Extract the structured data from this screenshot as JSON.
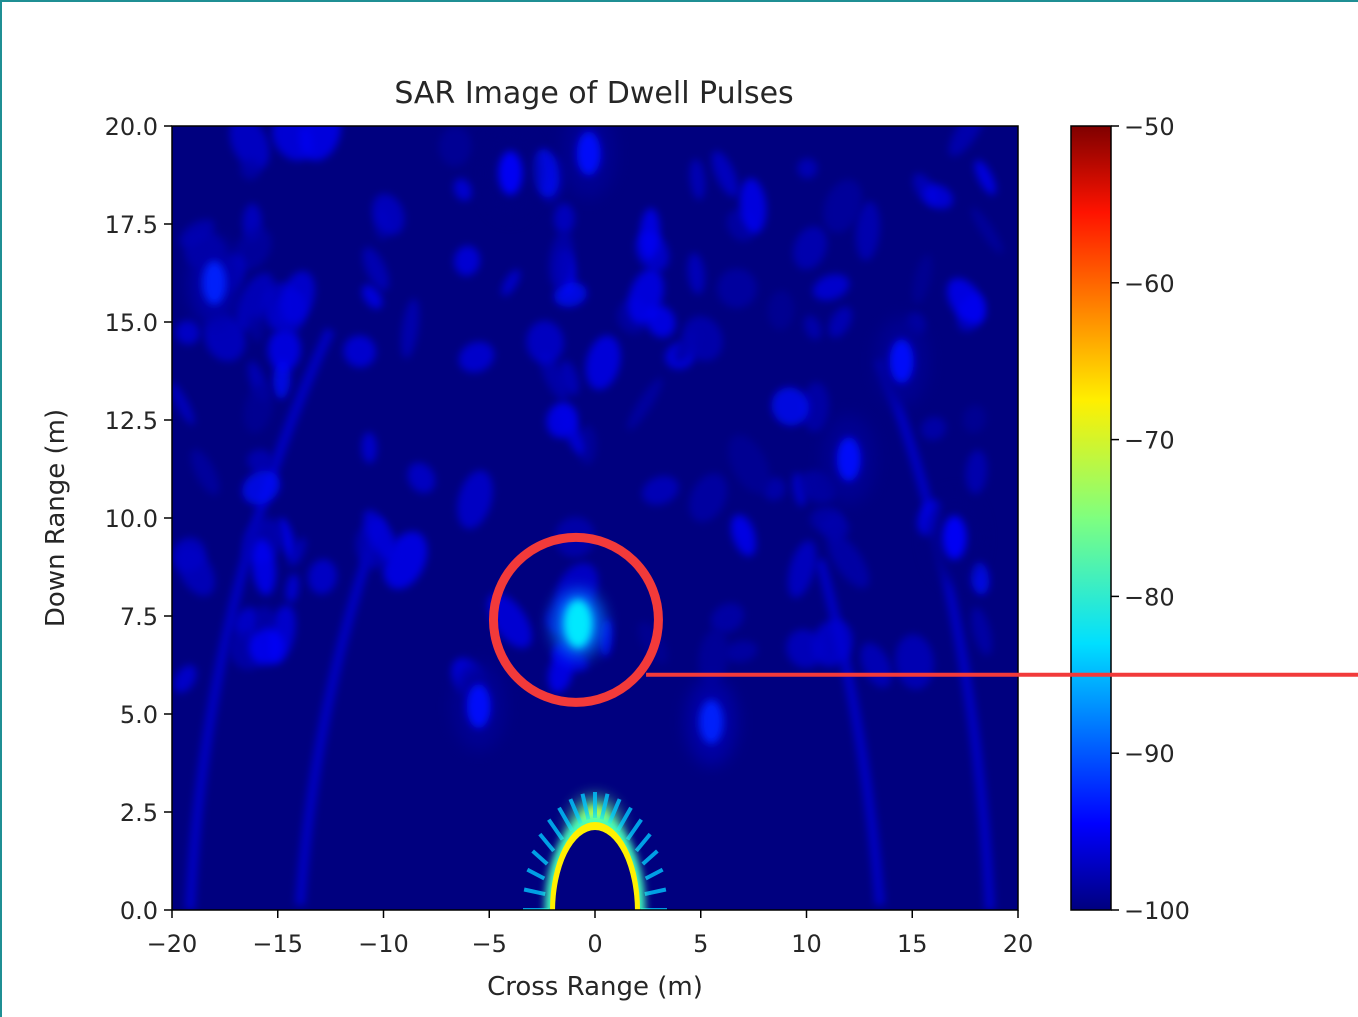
{
  "chart_data": {
    "type": "heatmap",
    "title": "SAR Image of Dwell Pulses",
    "xlabel": "Cross Range (m)",
    "ylabel": "Down Range (m)",
    "xlim": [
      -20,
      20
    ],
    "ylim": [
      0,
      20
    ],
    "xticks": [
      "−20",
      "−15",
      "−10",
      "−5",
      "0",
      "5",
      "10",
      "15",
      "20"
    ],
    "xtick_values": [
      -20,
      -15,
      -10,
      -5,
      0,
      5,
      10,
      15,
      20
    ],
    "yticks": [
      "0.0",
      "2.5",
      "5.0",
      "7.5",
      "10.0",
      "12.5",
      "15.0",
      "17.5",
      "20.0"
    ],
    "ytick_values": [
      0,
      2.5,
      5,
      7.5,
      10,
      12.5,
      15,
      17.5,
      20
    ],
    "colormap": "jet",
    "colorbar": {
      "range": [
        -100,
        -50
      ],
      "ticks": [
        "−100",
        "−90",
        "−80",
        "−70",
        "−60",
        "−50"
      ],
      "tick_values": [
        -100,
        -90,
        -80,
        -70,
        -60,
        -50
      ]
    },
    "hotspots": [
      {
        "x": -0.8,
        "y": 7.3,
        "value": -82,
        "note": "target return"
      },
      {
        "x": 0,
        "y": 2.0,
        "value": -70,
        "note": "near-field arc"
      },
      {
        "x": -18,
        "y": 16,
        "value": -92
      },
      {
        "x": -4,
        "y": 18.8,
        "value": -94
      },
      {
        "x": -0.3,
        "y": 19.3,
        "value": -93
      },
      {
        "x": 14.5,
        "y": 14,
        "value": -93
      },
      {
        "x": 12,
        "y": 11.5,
        "value": -93
      },
      {
        "x": 17,
        "y": 9.5,
        "value": -94
      },
      {
        "x": 5.5,
        "y": 4.8,
        "value": -92
      },
      {
        "x": -5.5,
        "y": 5.2,
        "value": -93
      }
    ]
  },
  "annotation": {
    "circle": {
      "x": -0.9,
      "y": 7.4,
      "radius_m": 3.9
    },
    "color": "#f23a3a"
  }
}
